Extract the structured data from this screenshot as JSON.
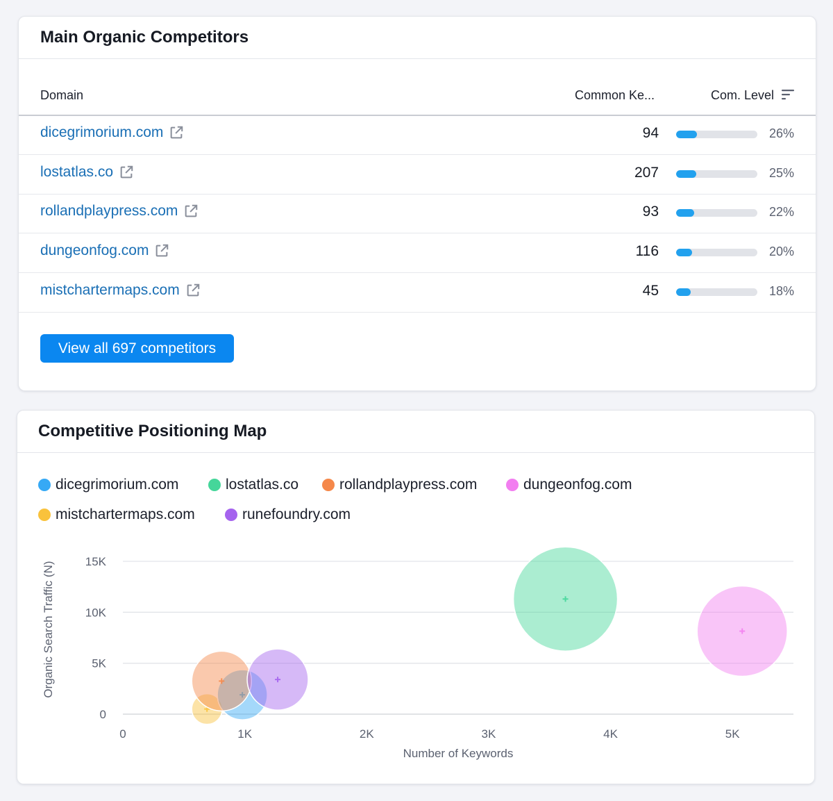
{
  "competitors": {
    "title": "Main Organic Competitors",
    "columns": {
      "domain": "Domain",
      "common_keywords": "Common Ke...",
      "com_level": "Com. Level"
    },
    "rows": [
      {
        "domain": "dicegrimorium.com",
        "common_keywords": "94",
        "level_pct": "26%",
        "level": 0.26
      },
      {
        "domain": "lostatlas.co",
        "common_keywords": "207",
        "level_pct": "25%",
        "level": 0.25
      },
      {
        "domain": "rollandplaypress.com",
        "common_keywords": "93",
        "level_pct": "22%",
        "level": 0.22
      },
      {
        "domain": "dungeonfog.com",
        "common_keywords": "116",
        "level_pct": "20%",
        "level": 0.2
      },
      {
        "domain": "mistchartermaps.com",
        "common_keywords": "45",
        "level_pct": "18%",
        "level": 0.18
      }
    ],
    "view_all_label": "View all 697 competitors",
    "colors": {
      "link": "#1a6fb5",
      "bar": "#22a1ee",
      "button": "#0b87f0"
    }
  },
  "positioning_map": {
    "title": "Competitive Positioning Map",
    "legend": [
      {
        "label": "dicegrimorium.com",
        "color": "#36a9f5"
      },
      {
        "label": "lostatlas.co",
        "color": "#45d69a"
      },
      {
        "label": "rollandplaypress.com",
        "color": "#f5884a"
      },
      {
        "label": "dungeonfog.com",
        "color": "#f27ef0"
      },
      {
        "label": "mistchartermaps.com",
        "color": "#f9c23c"
      },
      {
        "label": "runefoundry.com",
        "color": "#a563ee"
      }
    ]
  },
  "chart_data": {
    "type": "scatter",
    "title": "",
    "xlabel": "Number of Keywords",
    "ylabel": "Organic Search Traffic (N)",
    "xlim": [
      0,
      5500
    ],
    "ylim": [
      0,
      15000
    ],
    "xticks": [
      {
        "v": 0,
        "label": "0"
      },
      {
        "v": 1000,
        "label": "1K"
      },
      {
        "v": 2000,
        "label": "2K"
      },
      {
        "v": 3000,
        "label": "3K"
      },
      {
        "v": 4000,
        "label": "4K"
      },
      {
        "v": 5000,
        "label": "5K"
      }
    ],
    "yticks": [
      {
        "v": 0,
        "label": "0"
      },
      {
        "v": 5000,
        "label": "5K"
      },
      {
        "v": 10000,
        "label": "10K"
      },
      {
        "v": 15000,
        "label": "15K"
      }
    ],
    "grid": true,
    "legend_position": "top",
    "series": [
      {
        "name": "mistchartermaps.com",
        "x": 690,
        "y": 500,
        "r": 22,
        "color": "#f9c23c"
      },
      {
        "name": "dicegrimorium.com",
        "x": 980,
        "y": 1900,
        "r": 36,
        "color": "#36a9f5"
      },
      {
        "name": "rollandplaypress.com",
        "x": 810,
        "y": 3250,
        "r": 43,
        "color": "#f5884a"
      },
      {
        "name": "runefoundry.com",
        "x": 1270,
        "y": 3400,
        "r": 44,
        "color": "#a563ee"
      },
      {
        "name": "lostatlas.co",
        "x": 3630,
        "y": 11300,
        "r": 75,
        "color": "#45d69a"
      },
      {
        "name": "dungeonfog.com",
        "x": 5080,
        "y": 8150,
        "r": 65,
        "color": "#f27ef0"
      }
    ]
  }
}
